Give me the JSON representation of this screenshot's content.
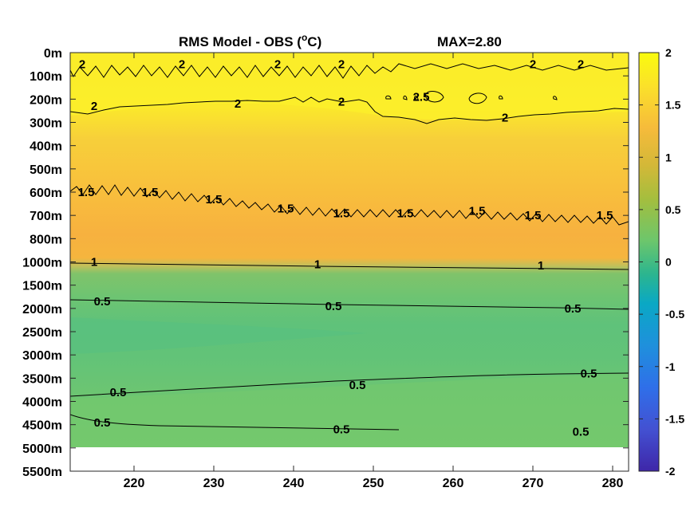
{
  "chart_data": {
    "type": "heatmap",
    "title_left": "RMS Model - OBS (",
    "title_sup": "o",
    "title_unit": "C)",
    "title_right": "MAX=2.80",
    "x_ticks": [
      "220",
      "230",
      "240",
      "250",
      "260",
      "270",
      "280"
    ],
    "x_tick_values": [
      220,
      230,
      240,
      250,
      260,
      270,
      280
    ],
    "xlim": [
      212,
      282
    ],
    "y_ticks": [
      "0m",
      "100m",
      "200m",
      "300m",
      "400m",
      "500m",
      "600m",
      "700m",
      "800m",
      "1000m",
      "1500m",
      "2000m",
      "2500m",
      "3000m",
      "3500m",
      "4000m",
      "4500m",
      "5000m",
      "5500m"
    ],
    "colorbar_ticks": [
      "2",
      "1.5",
      "1",
      "0.5",
      "0",
      "-0.5",
      "-1",
      "-1.5",
      "-2"
    ],
    "colorbar_values": [
      2,
      1.5,
      1,
      0.5,
      0,
      -0.5,
      -1,
      -1.5,
      -2
    ],
    "clim": [
      -2,
      2
    ],
    "colormap": "parula",
    "contour_labels": [
      {
        "text": "2",
        "x": 213.5,
        "y": "50m"
      },
      {
        "text": "2",
        "x": 226,
        "y": "50m"
      },
      {
        "text": "2",
        "x": 238,
        "y": "50m"
      },
      {
        "text": "2",
        "x": 246,
        "y": "50m"
      },
      {
        "text": "2",
        "x": 270,
        "y": "50m"
      },
      {
        "text": "2",
        "x": 276,
        "y": "50m"
      },
      {
        "text": "2",
        "x": 215,
        "y": "230m"
      },
      {
        "text": "2",
        "x": 233,
        "y": "220m"
      },
      {
        "text": "2",
        "x": 246,
        "y": "210m"
      },
      {
        "text": "2.5",
        "x": 256,
        "y": "190m"
      },
      {
        "text": "2",
        "x": 266.5,
        "y": "280m"
      },
      {
        "text": "1.5",
        "x": 214,
        "y": "600m"
      },
      {
        "text": "1.5",
        "x": 222,
        "y": "600m"
      },
      {
        "text": "1.5",
        "x": 230,
        "y": "630m"
      },
      {
        "text": "1.5",
        "x": 239,
        "y": "670m"
      },
      {
        "text": "1.5",
        "x": 246,
        "y": "690m"
      },
      {
        "text": "1.5",
        "x": 254,
        "y": "690m"
      },
      {
        "text": "1.5",
        "x": 263,
        "y": "680m"
      },
      {
        "text": "1.5",
        "x": 270,
        "y": "700m"
      },
      {
        "text": "1.5",
        "x": 279,
        "y": "700m"
      },
      {
        "text": "1",
        "x": 215,
        "y": "1000m"
      },
      {
        "text": "1",
        "x": 243,
        "y": "1050m"
      },
      {
        "text": "1",
        "x": 271,
        "y": "1080m"
      },
      {
        "text": "0.5",
        "x": 216,
        "y": "1850m"
      },
      {
        "text": "0.5",
        "x": 245,
        "y": "1950m"
      },
      {
        "text": "0.5",
        "x": 275,
        "y": "2000m"
      },
      {
        "text": "0.5",
        "x": 218,
        "y": "3800m"
      },
      {
        "text": "0.5",
        "x": 248,
        "y": "3650m"
      },
      {
        "text": "0.5",
        "x": 277,
        "y": "3400m"
      },
      {
        "text": "0.5",
        "x": 216,
        "y": "4450m"
      },
      {
        "text": "0.5",
        "x": 246,
        "y": "4600m"
      },
      {
        "text": "0.5",
        "x": 276,
        "y": "4650m"
      }
    ]
  }
}
